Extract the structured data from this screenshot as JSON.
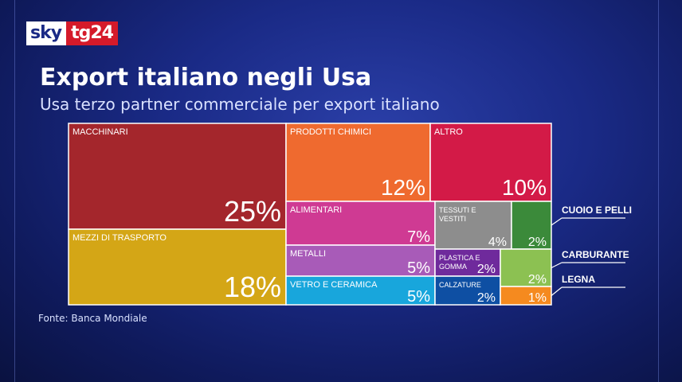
{
  "logo": {
    "sky": "sky",
    "tg": "tg24"
  },
  "header": {
    "title": "Export italiano negli Usa",
    "subtitle": "Usa terzo partner commerciale per export italiano"
  },
  "source": "Fonte: Banca Mondiale",
  "chart_data": {
    "type": "treemap",
    "unit": "%",
    "items": [
      {
        "label": "MACCHINARI",
        "value": 25,
        "display": "25%",
        "color": "#a4262c"
      },
      {
        "label": "MEZZI DI TRASPORTO",
        "value": 18,
        "display": "18%",
        "color": "#d4a616"
      },
      {
        "label": "PRODOTTI CHIMICI",
        "value": 12,
        "display": "12%",
        "color": "#ef6a2f"
      },
      {
        "label": "ALTRO",
        "value": 10,
        "display": "10%",
        "color": "#d31a47"
      },
      {
        "label": "ALIMENTARI",
        "value": 7,
        "display": "7%",
        "color": "#cf3a93"
      },
      {
        "label": "METALLI",
        "value": 5,
        "display": "5%",
        "color": "#a85bb8"
      },
      {
        "label": "VETRO E CERAMICA",
        "value": 5,
        "display": "5%",
        "color": "#18a6dc"
      },
      {
        "label": "TESSUTI E VESTITI",
        "value": 4,
        "display": "4%",
        "color": "#8d8d8d"
      },
      {
        "label": "PLASTICA E GOMMA",
        "value": 2,
        "display": "2%",
        "color": "#6f2a9c"
      },
      {
        "label": "CALZATURE",
        "value": 2,
        "display": "2%",
        "color": "#0e4fa3"
      },
      {
        "label": "CUOIO E PELLI",
        "value": 2,
        "display": "2%",
        "color": "#3b8a3a"
      },
      {
        "label": "CARBURANTE",
        "value": 2,
        "display": "2%",
        "color": "#8cc152"
      },
      {
        "label": "LEGNA",
        "value": 1,
        "display": "1%",
        "color": "#f58a1f"
      }
    ]
  }
}
